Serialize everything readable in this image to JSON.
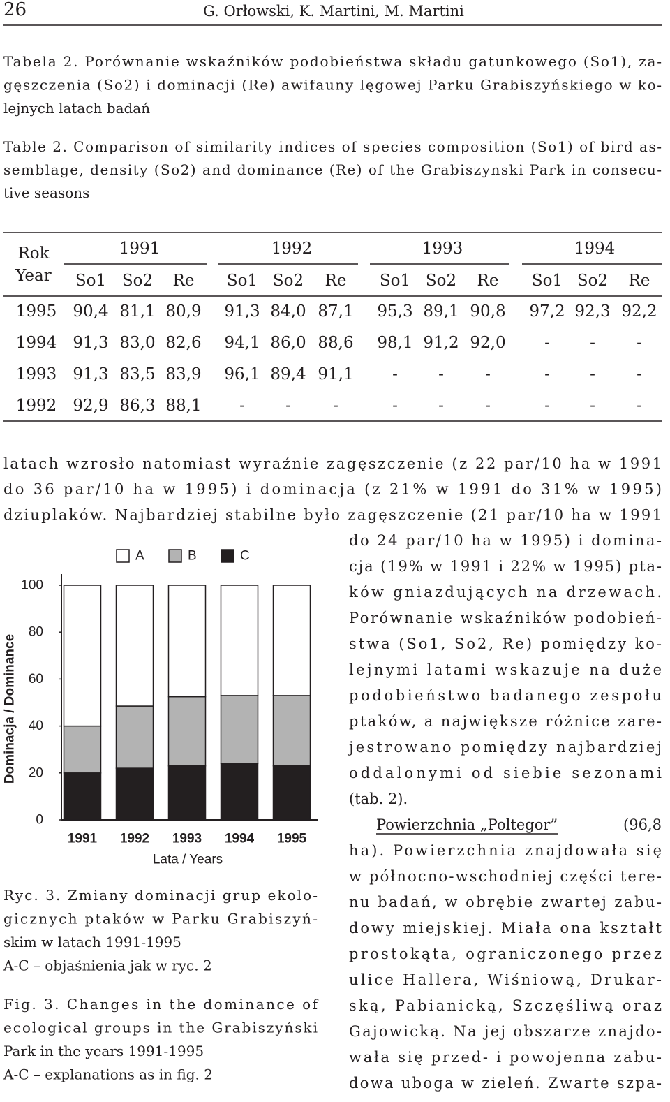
{
  "header": {
    "page_number": "26",
    "authors": "G. Orłowski, K. Martini, M. Martini"
  },
  "table_caption_pl": [
    "Tabela 2. Porównanie wskaźników podobieństwa składu gatunkowego (So1), za-",
    "gęszczenia (So2) i dominacji (Re) awifauny lęgowej Parku Grabiszyńskiego w ko-",
    "lejnych latach badań"
  ],
  "table_caption_en": [
    "Table 2. Comparison of similarity indices of species composition (So1) of bird as-",
    "semblage, density (So2) and dominance (Re) of the Grabiszynski Park in consecu-",
    "tive seasons"
  ],
  "table": {
    "corner": [
      "Rok",
      "Year"
    ],
    "groups": [
      "1991",
      "1992",
      "1993",
      "1994"
    ],
    "subheaders": [
      "So1",
      "So2",
      "Re"
    ],
    "rows": [
      {
        "year": "1995",
        "cells": [
          "90,4",
          "81,1",
          "80,9",
          "91,3",
          "84,0",
          "87,1",
          "95,3",
          "89,1",
          "90,8",
          "97,2",
          "92,3",
          "92,2"
        ]
      },
      {
        "year": "1994",
        "cells": [
          "91,3",
          "83,0",
          "82,6",
          "94,1",
          "86,0",
          "88,6",
          "98,1",
          "91,2",
          "92,0",
          "-",
          "-",
          "-"
        ]
      },
      {
        "year": "1993",
        "cells": [
          "91,3",
          "83,5",
          "83,9",
          "96,1",
          "89,4",
          "91,1",
          "-",
          "-",
          "-",
          "-",
          "-",
          "-"
        ]
      },
      {
        "year": "1992",
        "cells": [
          "92,9",
          "86,3",
          "88,1",
          "-",
          "-",
          "-",
          "-",
          "-",
          "-",
          "-",
          "-",
          "-"
        ]
      }
    ]
  },
  "paragraph_1": [
    "latach wzrosło natomiast wyraźnie zagęszczenie (z 22 par/10 ha w 1991",
    "do 36 par/10 ha w 1995) i dominacja (z 21% w 1991 do 31% w 1995)",
    "dziuplaków. Najbardziej stabilne było zagęszczenie (21 par/10 ha w 1991",
    "do 24 par/10 ha w 1995) i domina-",
    "cja (19% w 1991 i 22% w 1995) pta-",
    "ków gniazdujących na drzewach.",
    "Porównanie wskaźników podobień-",
    "stwa (So1, So2, Re) pomiędzy ko-",
    "lejnymi latami wskazuje na duże",
    "podobieństwo badanego zespołu",
    "ptaków, a największe różnice zare-",
    "jestrowano pomiędzy najbardziej",
    "oddalonymi od siebie sezonami",
    "(tab. 2)."
  ],
  "paragraph_2": {
    "heading": "Powierzchnia „Poltegor”",
    "lines": [
      "(96,8",
      "ha). Powierzchnia znajdowała się",
      "w północno-wschodniej części tere-",
      "nu badań, w obrębie zwartej zabu-",
      "dowy miejskiej. Miała ona kształt",
      "prostokąta, ograniczonego przez",
      "ulice Hallera, Wiśniową, Drukar-",
      "ską, Pabianicką, Szczęśliwą oraz",
      "Gajowicką. Na jej obszarze znajdo-",
      "wała się przed- i powojenna zabu-",
      "dowa uboga w zieleń. Zwarte szpa-"
    ]
  },
  "chart_data": {
    "type": "bar",
    "stacked": true,
    "y_label": "Dominacja / Dominance",
    "x_label": "Lata / Years",
    "categories": [
      "1991",
      "1992",
      "1993",
      "1994",
      "1995"
    ],
    "series": [
      {
        "name": "C",
        "color": "#231f20",
        "values": [
          20,
          22,
          23,
          24,
          23
        ]
      },
      {
        "name": "B",
        "color": "#b3b3b3",
        "values": [
          20,
          26.5,
          29.5,
          29,
          30
        ]
      },
      {
        "name": "A",
        "color": "#ffffff",
        "values": [
          60,
          51.5,
          47.5,
          47,
          47
        ]
      }
    ],
    "ylim": [
      0,
      100
    ],
    "yticks": [
      0,
      20,
      40,
      60,
      80,
      100
    ]
  },
  "figure_caption_pl": [
    "Ryc. 3. Zmiany dominacji grup ekolo-",
    "gicznych ptaków w Parku Grabiszyń-",
    "skim w latach 1991-1995",
    "A-C – objaśnienia jak w ryc. 2"
  ],
  "figure_caption_en": [
    "Fig. 3. Changes in the dominance of",
    "ecological groups in the Grabiszyński",
    "Park in the years 1991-1995",
    "A-C – explanations as in fig. 2"
  ]
}
